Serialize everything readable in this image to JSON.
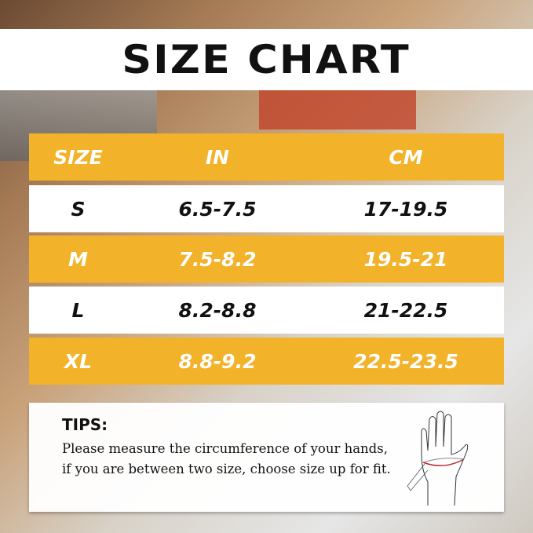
{
  "title": "SIZE CHART",
  "table": {
    "headers": [
      "SIZE",
      "IN",
      "CM"
    ],
    "rows": [
      [
        "S",
        "6.5-7.5",
        "17-19.5"
      ],
      [
        "M",
        "7.5-8.2",
        "19.5-21"
      ],
      [
        "L",
        "8.2-8.8",
        "21-22.5"
      ],
      [
        "XL",
        "8.8-9.2",
        "22.5-23.5"
      ]
    ]
  },
  "tips": {
    "heading": "TIPS:",
    "text": "Please measure the circumference of your hands, if you are between two size, choose size up for fit."
  },
  "colors": {
    "accent": "#f2b32a",
    "measure_line": "#c0282d"
  }
}
